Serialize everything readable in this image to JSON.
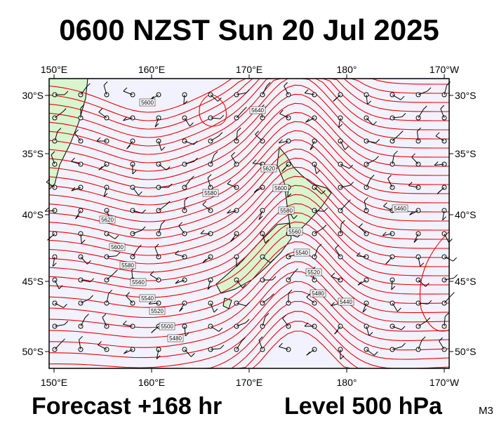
{
  "title": "0600 NZST Sun 20 Jul 2025",
  "footer": {
    "forecast": "Forecast +168 hr",
    "level": "Level 500 hPa",
    "model": "M3"
  },
  "lon_labels": [
    "150°E",
    "160°E",
    "170°E",
    "180°",
    "170°W"
  ],
  "lat_labels": [
    "30°S",
    "35°S",
    "40°S",
    "45°S",
    "50°S"
  ],
  "contour_labels": [
    "5640",
    "5600",
    "5620",
    "5580",
    "5600",
    "5620",
    "5600",
    "5580",
    "5560",
    "5540",
    "5520",
    "5500",
    "5480",
    "5580",
    "5560",
    "5540",
    "5520",
    "5480",
    "5440",
    "5460"
  ]
}
